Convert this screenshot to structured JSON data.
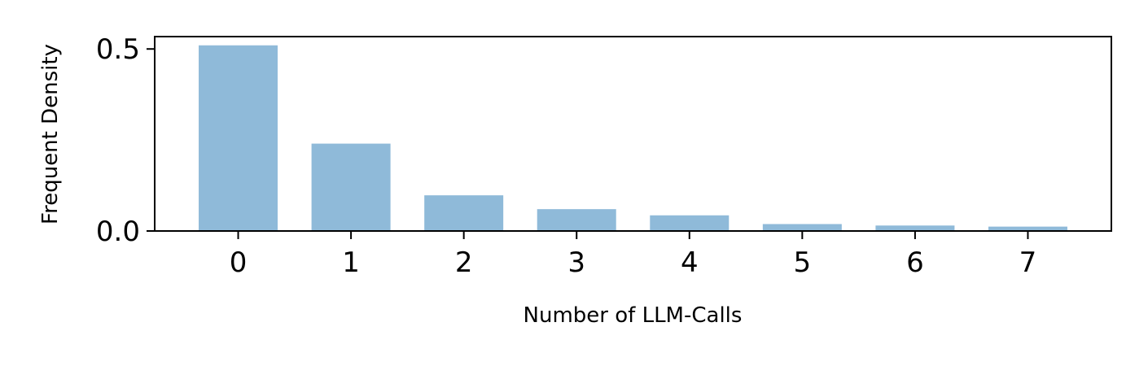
{
  "chart_data": {
    "type": "bar",
    "title": "",
    "xlabel": "Number of LLM-Calls",
    "ylabel": "Frequent Density",
    "categories": [
      "0",
      "1",
      "2",
      "3",
      "4",
      "5",
      "6",
      "7"
    ],
    "values": [
      0.51,
      0.24,
      0.098,
      0.06,
      0.043,
      0.019,
      0.015,
      0.012
    ],
    "ylim": [
      0,
      0.534
    ],
    "xlim": [
      -0.74,
      7.74
    ],
    "yticks": [
      0.0,
      0.5
    ],
    "ytick_labels": [
      "0.0",
      "0.5"
    ],
    "bar_color": "#8fbad9",
    "bar_width": 0.7,
    "grid": false,
    "legend": "none"
  }
}
